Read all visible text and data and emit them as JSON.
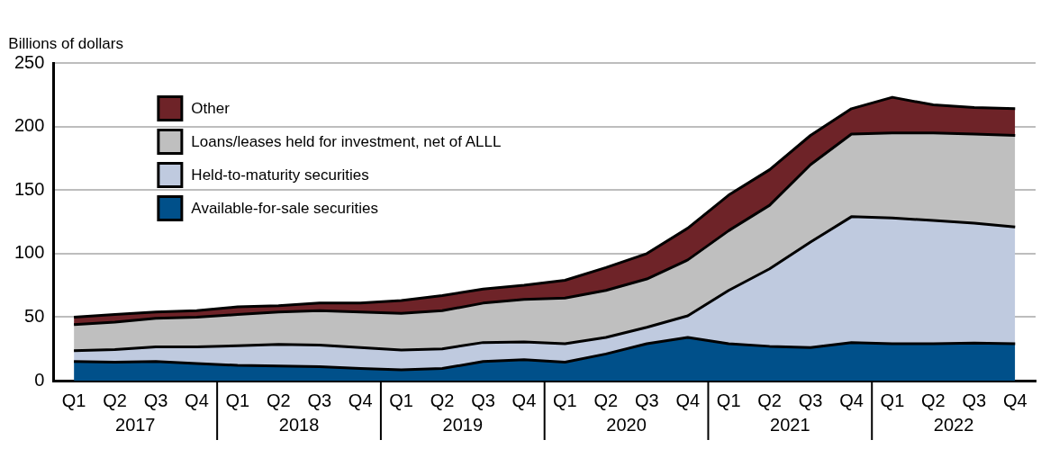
{
  "chart_data": {
    "type": "area",
    "stacked": true,
    "ylabel": "Billions of dollars",
    "categories": [
      "Q1",
      "Q2",
      "Q3",
      "Q4",
      "Q1",
      "Q2",
      "Q3",
      "Q4",
      "Q1",
      "Q2",
      "Q3",
      "Q4",
      "Q1",
      "Q2",
      "Q3",
      "Q4",
      "Q1",
      "Q2",
      "Q3",
      "Q4",
      "Q1",
      "Q2",
      "Q3",
      "Q4"
    ],
    "series": [
      {
        "name": "Available-for-sale securities",
        "color": "#00508a",
        "values": [
          15,
          14.5,
          15,
          13.5,
          12,
          11.5,
          11,
          9.5,
          8.5,
          9.5,
          15,
          16.5,
          14.5,
          21,
          29,
          34,
          29,
          27,
          26,
          30,
          29,
          29,
          29.5,
          29
        ]
      },
      {
        "name": "Held-to-maturity securities",
        "color": "#bfcadf",
        "values": [
          8.5,
          10,
          11.5,
          13,
          15.5,
          17,
          17,
          16.5,
          15.5,
          15.5,
          15,
          14,
          14.5,
          13,
          13,
          17,
          42,
          61,
          83,
          99,
          99,
          97,
          94.5,
          92
        ]
      },
      {
        "name": "Loans/leases held for investment, net of ALLL",
        "color": "#bfbfbf",
        "values": [
          20.5,
          21.5,
          22.5,
          23.5,
          24.5,
          25.5,
          27,
          28,
          29,
          30,
          31,
          33.5,
          36,
          37,
          38,
          44,
          47,
          50,
          61,
          65,
          67,
          69,
          70,
          72
        ]
      },
      {
        "name": "Other",
        "color": "#6e2328",
        "values": [
          6,
          6,
          5,
          5,
          6,
          5,
          6,
          7,
          10,
          12,
          11,
          11,
          14,
          18,
          20,
          25,
          28,
          28,
          23,
          20,
          28,
          22,
          21,
          21
        ]
      }
    ],
    "ylim": [
      0,
      250
    ],
    "yticks": [
      0,
      50,
      100,
      150,
      200,
      250
    ],
    "grid": "y",
    "legend": "top left",
    "annotations": [
      "2017",
      "2018",
      "2019",
      "2020",
      "2021",
      "2022"
    ]
  }
}
